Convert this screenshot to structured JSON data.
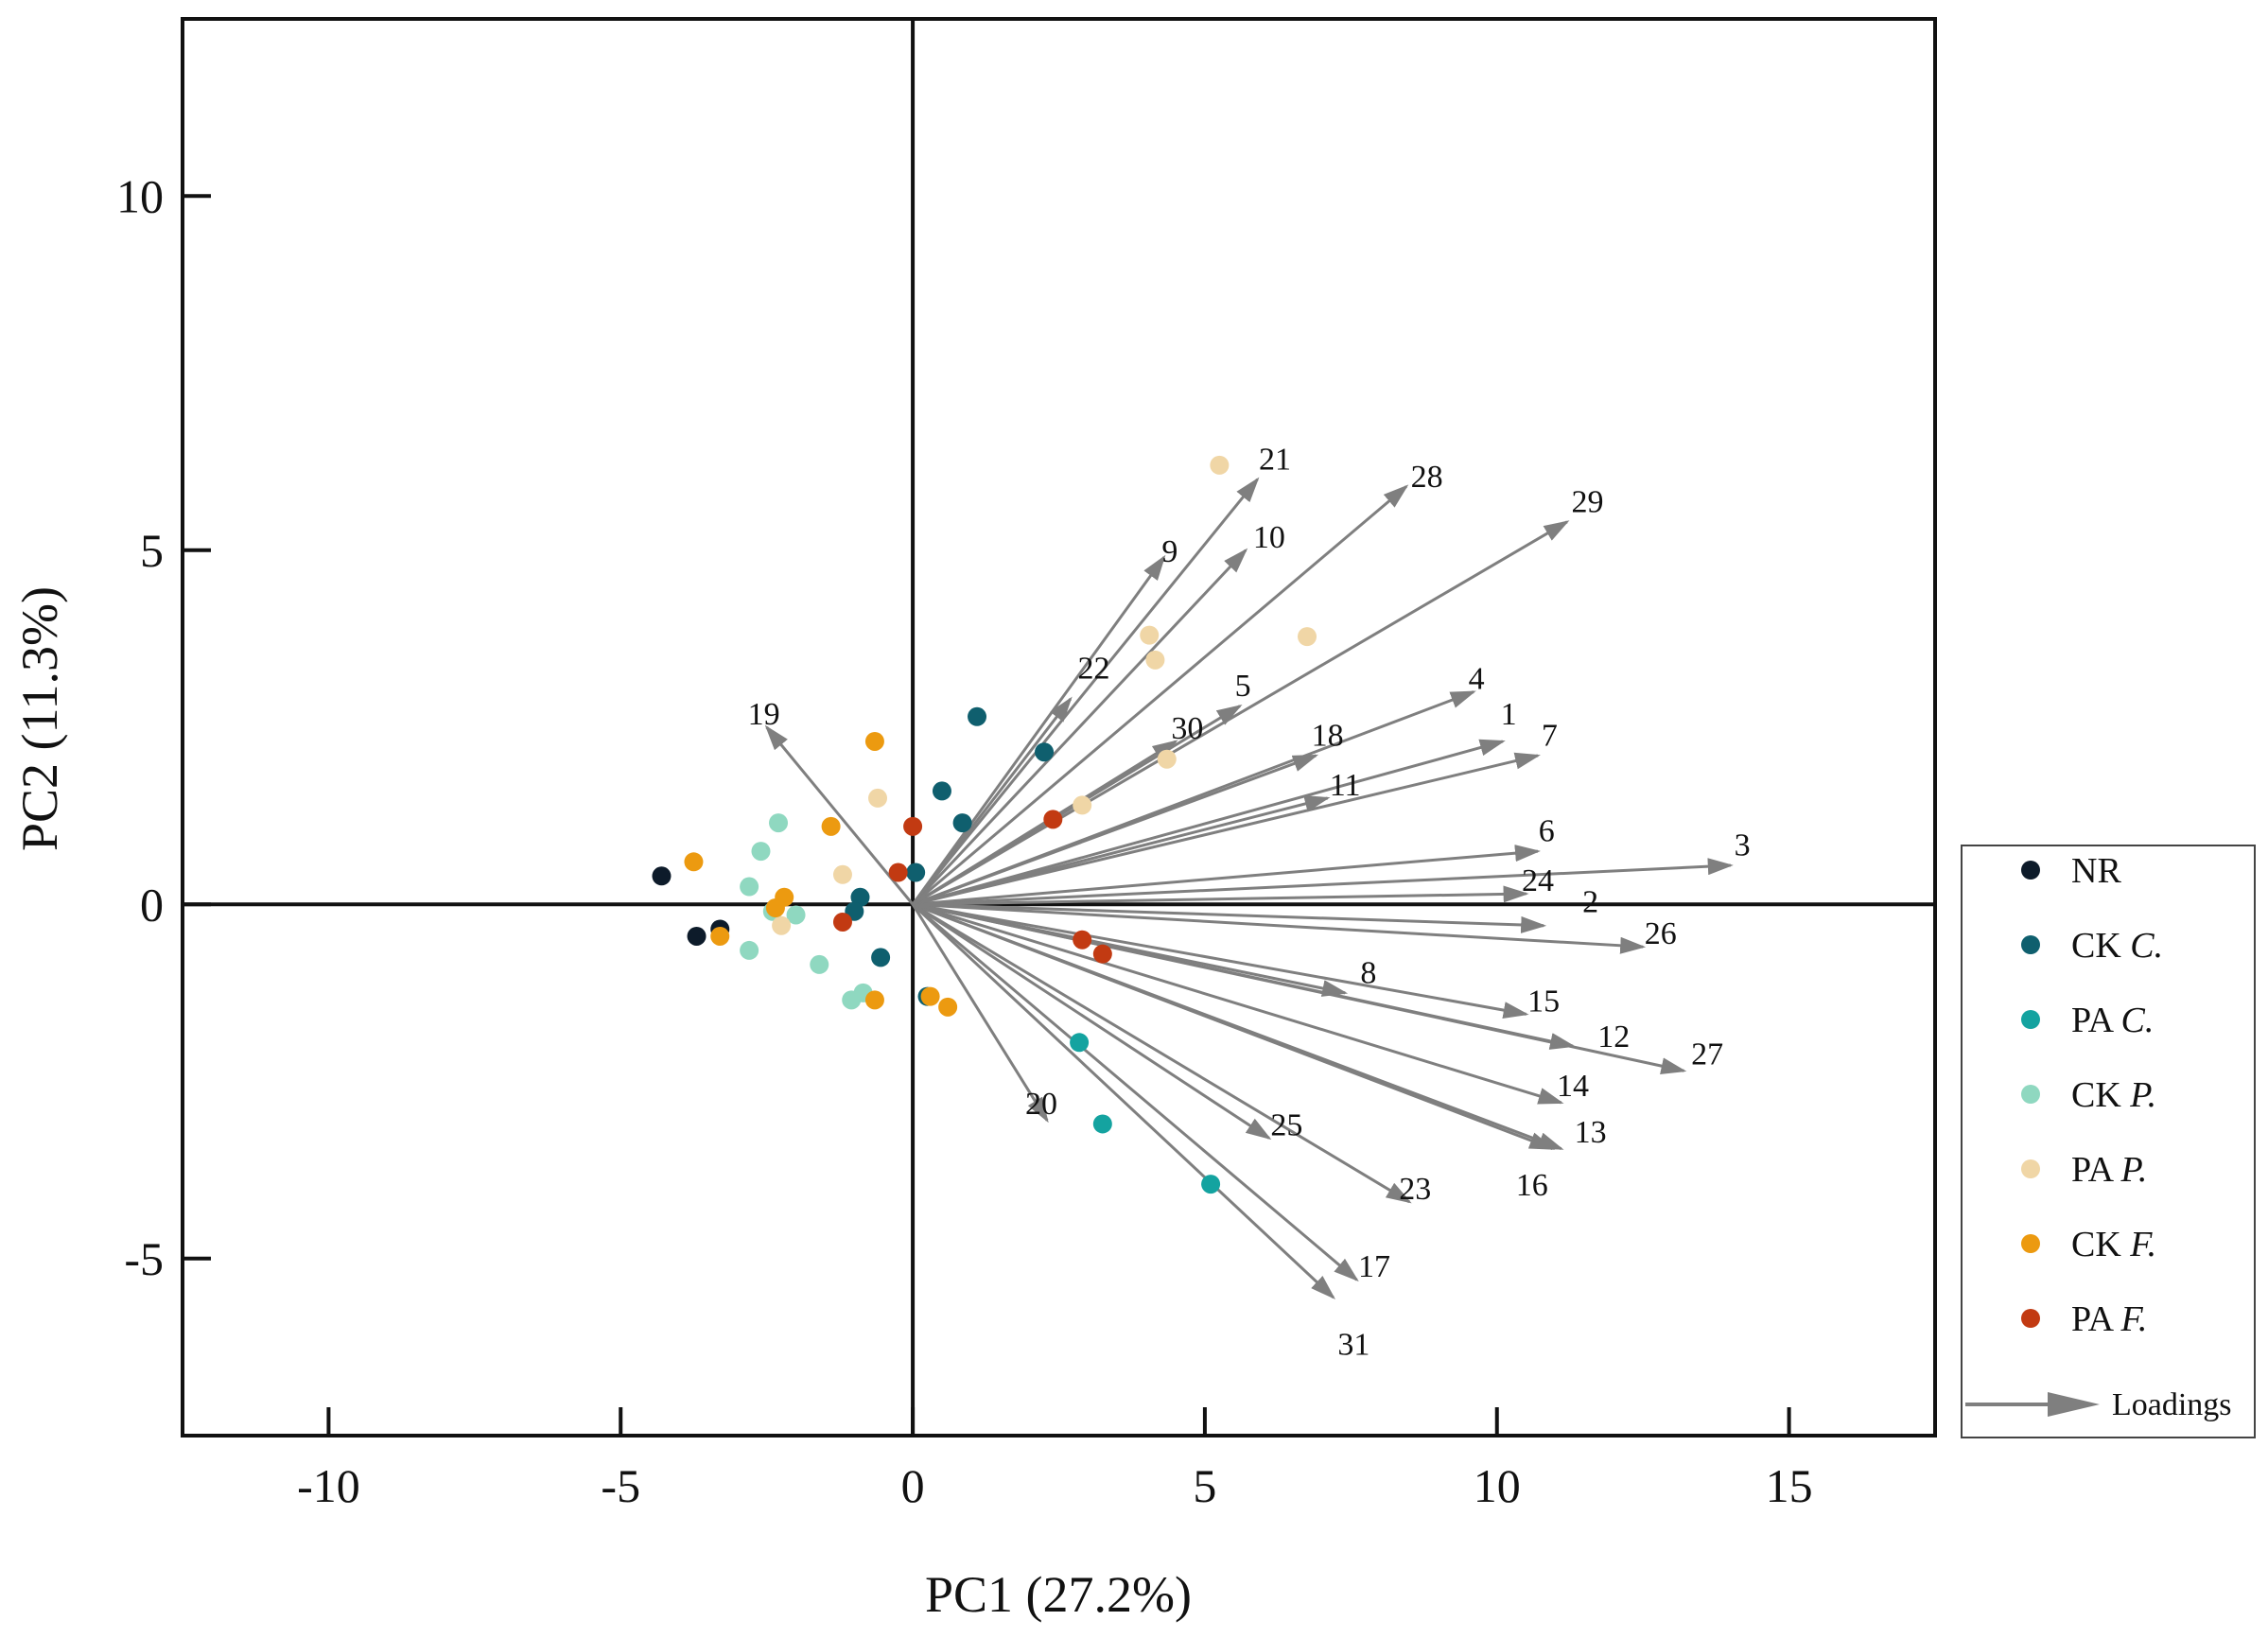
{
  "chart_data": {
    "type": "scatter",
    "subtype": "pca-biplot",
    "xlabel": "PC1 (27.2%)",
    "ylabel": "PC2 (11.3%)",
    "xlim": [
      -12.5,
      17.5
    ],
    "ylim": [
      -7.5,
      12.5
    ],
    "xticks": [
      -10,
      -5,
      0,
      5,
      10,
      15
    ],
    "yticks": [
      -5,
      0,
      5,
      10
    ],
    "xtick_labels": [
      "-10",
      "-5",
      "0",
      "5",
      "10",
      "15"
    ],
    "ytick_labels": [
      "-5",
      "0",
      "5",
      "10"
    ],
    "series": [
      {
        "name": "NR",
        "prefix": "NR",
        "italic": "",
        "color": "#0d1b2a",
        "points": [
          [
            -4.3,
            0.4
          ],
          [
            -3.7,
            -0.45
          ],
          [
            -3.3,
            -0.35
          ]
        ]
      },
      {
        "name": "CK C.",
        "prefix": "CK ",
        "italic": "C.",
        "color": "#0f5f6e",
        "points": [
          [
            1.1,
            2.65
          ],
          [
            2.25,
            2.15
          ],
          [
            0.5,
            1.6
          ],
          [
            0.85,
            1.15
          ],
          [
            0.05,
            0.45
          ],
          [
            -0.9,
            0.1
          ],
          [
            -1.0,
            -0.1
          ],
          [
            -0.55,
            -0.75
          ],
          [
            0.25,
            -1.3
          ]
        ]
      },
      {
        "name": "PA C.",
        "prefix": "PA ",
        "italic": "C.",
        "color": "#14a3a0",
        "points": [
          [
            2.85,
            -1.95
          ],
          [
            3.25,
            -3.1
          ],
          [
            5.1,
            -3.95
          ]
        ]
      },
      {
        "name": "CK P.",
        "prefix": "CK ",
        "italic": "P.",
        "color": "#8fd8c0",
        "points": [
          [
            -2.3,
            1.15
          ],
          [
            -2.6,
            0.75
          ],
          [
            -2.8,
            0.25
          ],
          [
            -2.0,
            -0.15
          ],
          [
            -2.4,
            -0.1
          ],
          [
            -2.8,
            -0.65
          ],
          [
            -1.6,
            -0.85
          ],
          [
            -0.85,
            -1.25
          ],
          [
            -1.05,
            -1.35
          ]
        ]
      },
      {
        "name": "PA P.",
        "prefix": "PA ",
        "italic": "P.",
        "color": "#f0d6a6",
        "points": [
          [
            5.25,
            6.2
          ],
          [
            4.05,
            3.8
          ],
          [
            4.15,
            3.45
          ],
          [
            6.75,
            3.78
          ],
          [
            4.35,
            2.05
          ],
          [
            2.9,
            1.4
          ],
          [
            -0.6,
            1.5
          ],
          [
            -1.2,
            0.42
          ],
          [
            -2.25,
            -0.3
          ]
        ]
      },
      {
        "name": "CK F.",
        "prefix": "CK ",
        "italic": "F.",
        "color": "#ec9a10",
        "points": [
          [
            -0.65,
            2.3
          ],
          [
            -1.4,
            1.1
          ],
          [
            -3.75,
            0.6
          ],
          [
            -2.2,
            0.1
          ],
          [
            -2.35,
            -0.05
          ],
          [
            -3.3,
            -0.45
          ],
          [
            0.3,
            -1.3
          ],
          [
            0.6,
            -1.45
          ],
          [
            -0.65,
            -1.35
          ]
        ]
      },
      {
        "name": "PA F.",
        "prefix": "PA ",
        "italic": "F.",
        "color": "#c23a12",
        "points": [
          [
            0.0,
            1.1
          ],
          [
            2.4,
            1.2
          ],
          [
            -0.25,
            0.45
          ],
          [
            -1.2,
            -0.25
          ],
          [
            2.9,
            -0.5
          ],
          [
            3.25,
            -0.7
          ]
        ]
      }
    ],
    "loadings": [
      {
        "label": "1",
        "x": 10.1,
        "y": 2.3,
        "lx": 10.2,
        "ly": 2.7
      },
      {
        "label": "2",
        "x": 10.8,
        "y": -0.3,
        "lx": 11.6,
        "ly": 0.05
      },
      {
        "label": "3",
        "x": 14.0,
        "y": 0.55,
        "lx": 14.2,
        "ly": 0.85
      },
      {
        "label": "4",
        "x": 9.6,
        "y": 3.0,
        "lx": 9.65,
        "ly": 3.2
      },
      {
        "label": "5",
        "x": 5.6,
        "y": 2.8,
        "lx": 5.65,
        "ly": 3.1
      },
      {
        "label": "6",
        "x": 10.7,
        "y": 0.75,
        "lx": 10.85,
        "ly": 1.05
      },
      {
        "label": "7",
        "x": 10.7,
        "y": 2.1,
        "lx": 10.9,
        "ly": 2.4
      },
      {
        "label": "8",
        "x": 7.4,
        "y": -1.25,
        "lx": 7.8,
        "ly": -0.95
      },
      {
        "label": "9",
        "x": 4.3,
        "y": 4.9,
        "lx": 4.4,
        "ly": 5.0
      },
      {
        "label": "10",
        "x": 5.7,
        "y": 5.0,
        "lx": 6.1,
        "ly": 5.2
      },
      {
        "label": "11",
        "x": 7.1,
        "y": 1.5,
        "lx": 7.4,
        "ly": 1.7
      },
      {
        "label": "12",
        "x": 11.3,
        "y": -2.0,
        "lx": 12.0,
        "ly": -1.85
      },
      {
        "label": "13",
        "x": 10.95,
        "y": -3.45,
        "lx": 11.6,
        "ly": -3.2
      },
      {
        "label": "14",
        "x": 11.1,
        "y": -2.8,
        "lx": 11.3,
        "ly": -2.55
      },
      {
        "label": "15",
        "x": 10.5,
        "y": -1.55,
        "lx": 10.8,
        "ly": -1.35
      },
      {
        "label": "16",
        "x": 11.1,
        "y": -3.45,
        "lx": 10.6,
        "ly": -3.95
      },
      {
        "label": "17",
        "x": 7.6,
        "y": -5.3,
        "lx": 7.9,
        "ly": -5.1
      },
      {
        "label": "18",
        "x": 6.9,
        "y": 2.1,
        "lx": 7.1,
        "ly": 2.4
      },
      {
        "label": "19",
        "x": -2.5,
        "y": 2.5,
        "lx": -2.55,
        "ly": 2.7
      },
      {
        "label": "20",
        "x": 2.3,
        "y": -3.05,
        "lx": 2.2,
        "ly": -2.8
      },
      {
        "label": "21",
        "x": 5.9,
        "y": 6.0,
        "lx": 6.2,
        "ly": 6.3
      },
      {
        "label": "22",
        "x": 2.7,
        "y": 2.9,
        "lx": 3.1,
        "ly": 3.35
      },
      {
        "label": "23",
        "x": 8.5,
        "y": -4.2,
        "lx": 8.6,
        "ly": -4.0
      },
      {
        "label": "24",
        "x": 10.5,
        "y": 0.15,
        "lx": 10.7,
        "ly": 0.35
      },
      {
        "label": "25",
        "x": 6.1,
        "y": -3.3,
        "lx": 6.4,
        "ly": -3.1
      },
      {
        "label": "26",
        "x": 12.5,
        "y": -0.6,
        "lx": 12.8,
        "ly": -0.4
      },
      {
        "label": "27",
        "x": 13.2,
        "y": -2.35,
        "lx": 13.6,
        "ly": -2.1
      },
      {
        "label": "28",
        "x": 8.45,
        "y": 5.9,
        "lx": 8.8,
        "ly": 6.05
      },
      {
        "label": "29",
        "x": 11.2,
        "y": 5.4,
        "lx": 11.55,
        "ly": 5.7
      },
      {
        "label": "30",
        "x": 4.5,
        "y": 2.3,
        "lx": 4.7,
        "ly": 2.5
      },
      {
        "label": "31",
        "x": 7.2,
        "y": -5.55,
        "lx": 7.55,
        "ly": -6.2
      }
    ],
    "legend": {
      "position": "right",
      "loadings_label": "Loadings"
    }
  },
  "colors": {
    "axis": "#111111",
    "arrow": "#7f7f7f"
  }
}
